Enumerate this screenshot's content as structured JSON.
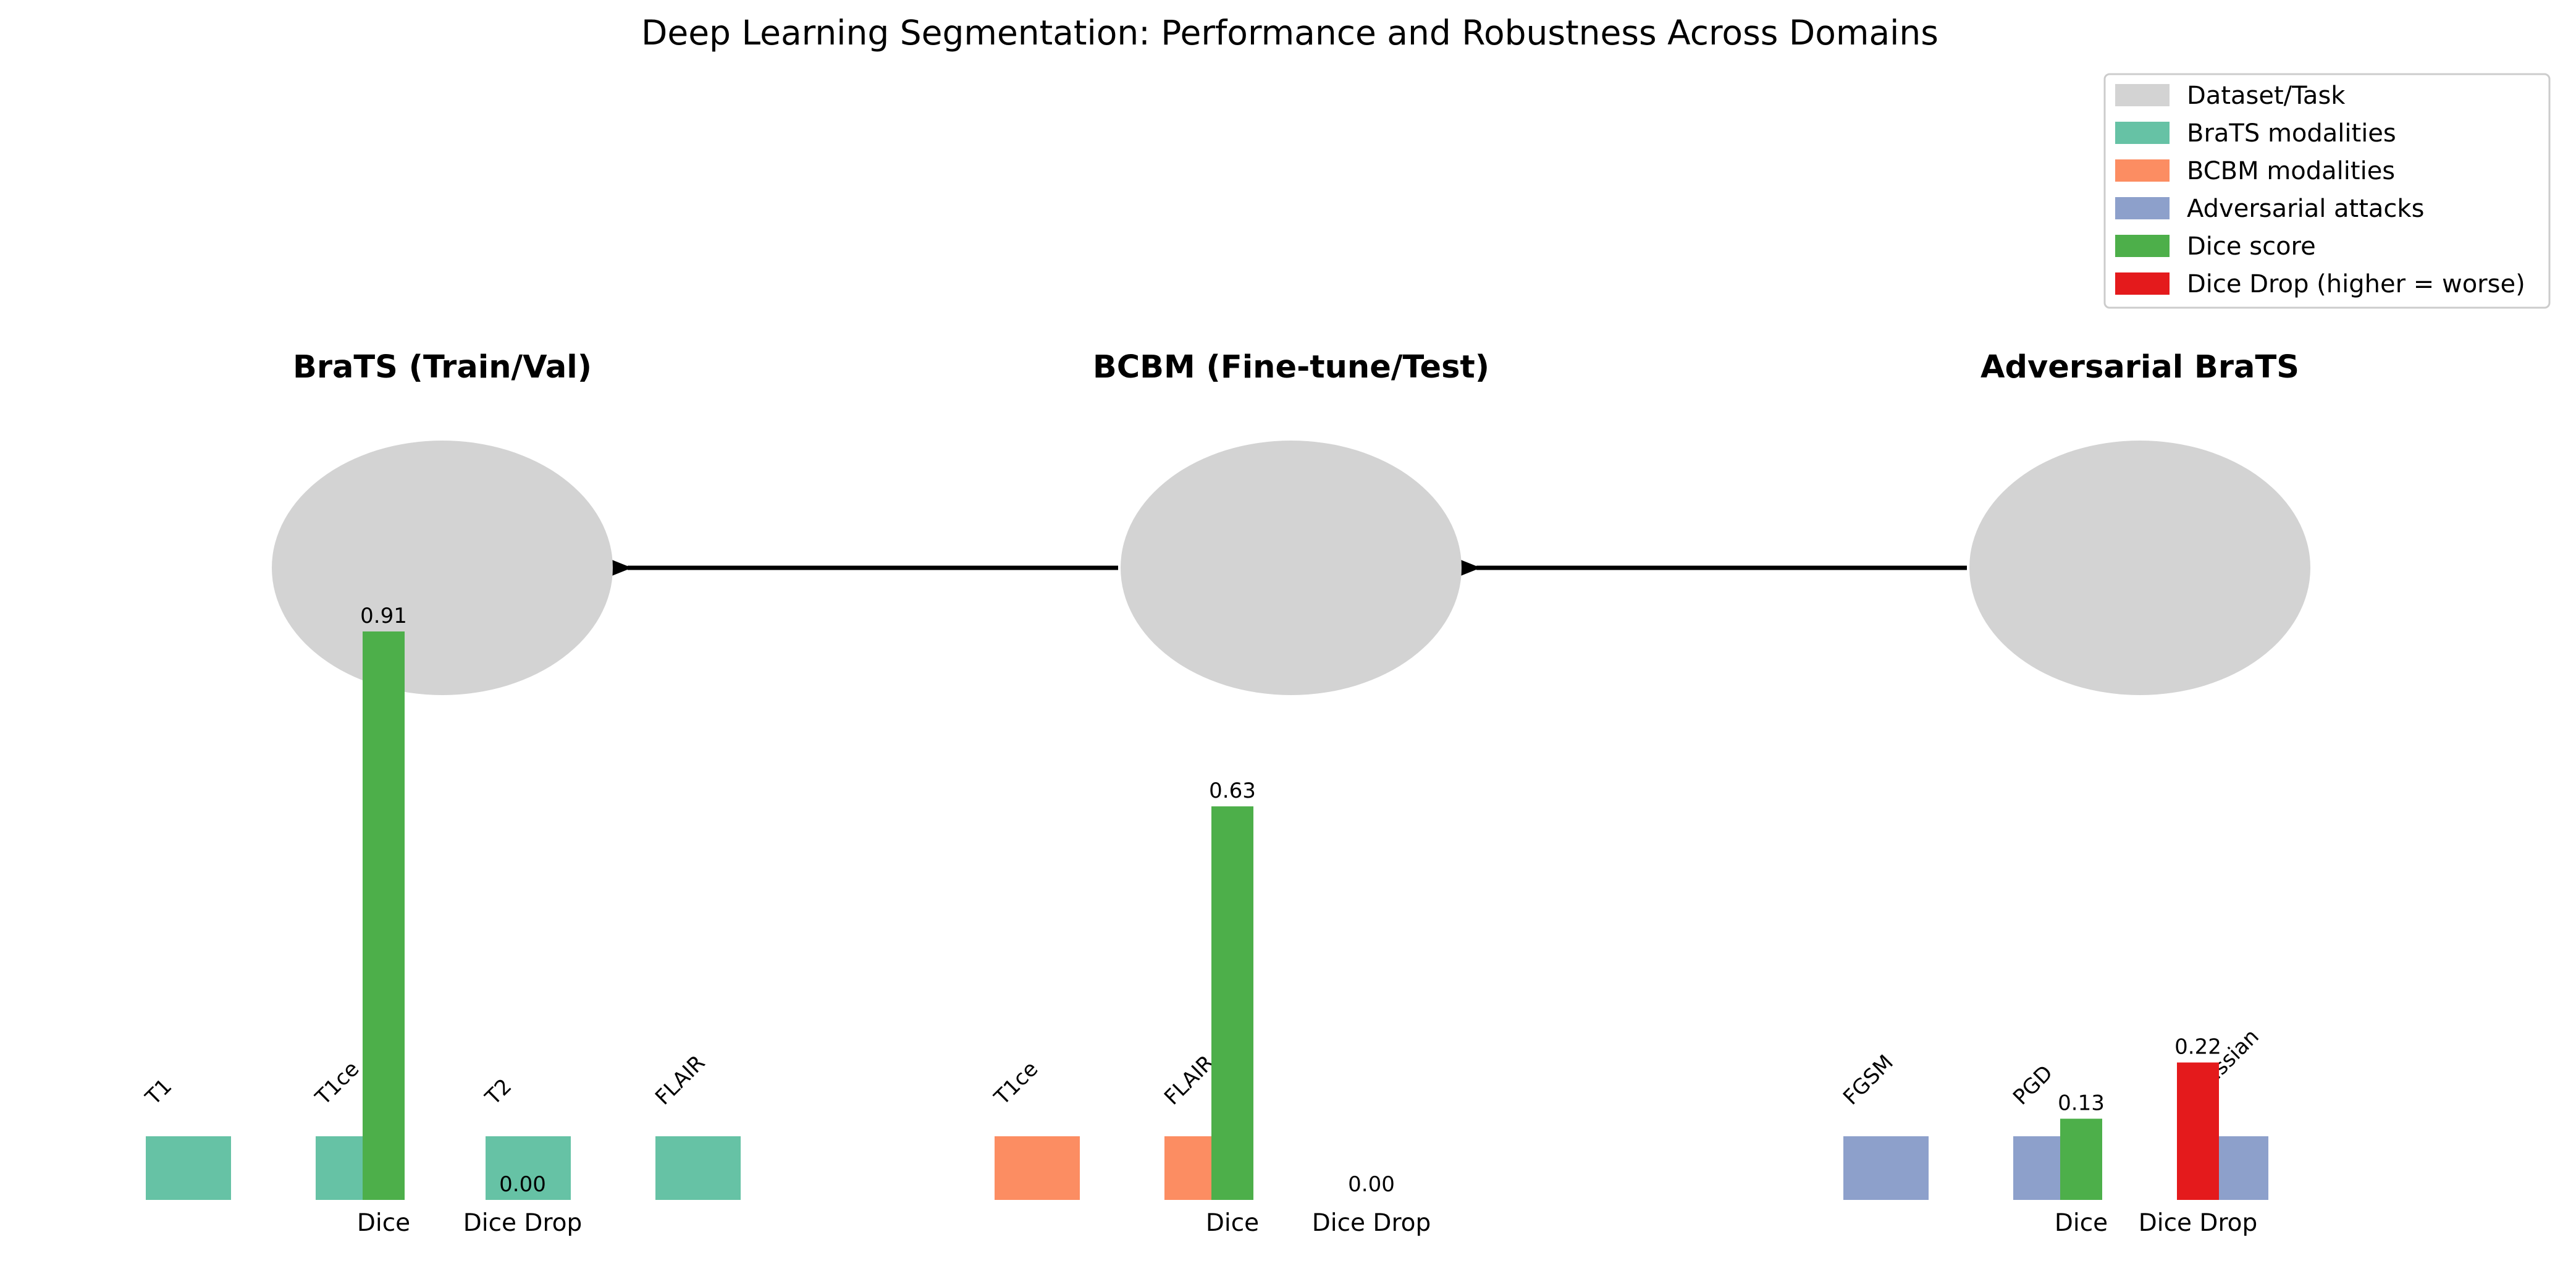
{
  "chart_data": {
    "type": "bar",
    "title": "Deep Learning Segmentation: Performance and Robustness Across Domains",
    "xlabel": "",
    "ylabel": "",
    "ylim": [
      0,
      1
    ],
    "grid": false,
    "legend_position": "top-right",
    "legend": [
      {
        "label": "Dataset/Task",
        "color": "#d3d3d3"
      },
      {
        "label": "BraTS modalities",
        "color": "#66c2a5"
      },
      {
        "label": "BCBM modalities",
        "color": "#fc8d62"
      },
      {
        "label": "Adversarial attacks",
        "color": "#8da0cb"
      },
      {
        "label": "Dice score",
        "color": "#4daf4a"
      },
      {
        "label": "Dice Drop (higher = worse)",
        "color": "#e41a1c"
      }
    ],
    "categories": [
      "Dice",
      "Dice Drop"
    ],
    "panels": [
      {
        "title": "BraTS (Train/Val)",
        "modalities": [
          "T1",
          "T1ce",
          "T2",
          "FLAIR"
        ],
        "modality_color": "#66c2a5",
        "values": [
          0.91,
          0.0
        ],
        "value_labels": [
          "0.91",
          "0.00"
        ]
      },
      {
        "title": "BCBM (Fine-tune/Test)",
        "modalities": [
          "T1ce",
          "FLAIR"
        ],
        "modality_color": "#fc8d62",
        "values": [
          0.63,
          0.0
        ],
        "value_labels": [
          "0.63",
          "0.00"
        ]
      },
      {
        "title": "Adversarial BraTS",
        "modalities": [
          "FGSM",
          "PGD",
          "Gaussian"
        ],
        "modality_color": "#8da0cb",
        "values": [
          0.13,
          0.22
        ],
        "value_labels": [
          "0.13",
          "0.22"
        ]
      }
    ],
    "colors": {
      "dataset_node": "#d3d3d3",
      "dice": "#4daf4a",
      "dice_drop": "#e41a1c",
      "arrow": "#000000"
    }
  }
}
